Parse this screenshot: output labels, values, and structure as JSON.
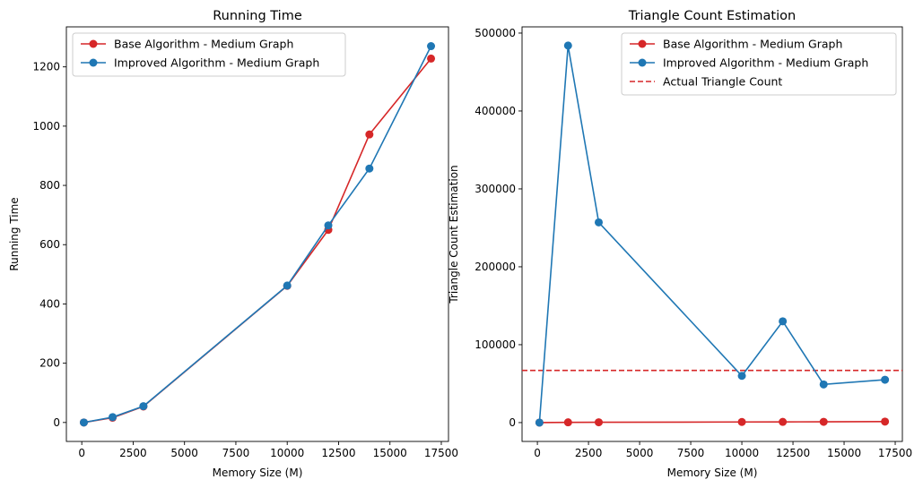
{
  "chart_data": [
    {
      "type": "line",
      "title": "Running Time",
      "xlabel": "Memory Size (M)",
      "ylabel": "Running Time",
      "xlim": [
        -750,
        17850
      ],
      "ylim": [
        -64,
        1335
      ],
      "xticks": [
        0,
        2500,
        5000,
        7500,
        10000,
        12500,
        15000,
        17500
      ],
      "yticks": [
        0,
        200,
        400,
        600,
        800,
        1000,
        1200
      ],
      "grid": false,
      "legend_position": "upper-left",
      "x": [
        100,
        1500,
        3000,
        10000,
        12000,
        14000,
        17000
      ],
      "series": [
        {
          "name": "Base Algorithm - Medium Graph",
          "color": "#d62728",
          "style": "solid-marker",
          "values": [
            0,
            16,
            54,
            461,
            650,
            972,
            1228
          ]
        },
        {
          "name": "Improved Algorithm - Medium Graph",
          "color": "#1f77b4",
          "style": "solid-marker",
          "values": [
            0,
            18,
            55,
            462,
            665,
            857,
            1270
          ]
        }
      ]
    },
    {
      "type": "line",
      "title": "Triangle Count Estimation",
      "xlabel": "Memory Size (M)",
      "ylabel": "Triangle Count Estimation",
      "xlim": [
        -750,
        17850
      ],
      "ylim": [
        -24200,
        508000
      ],
      "xticks": [
        0,
        2500,
        5000,
        7500,
        10000,
        12500,
        15000,
        17500
      ],
      "yticks": [
        0,
        100000,
        200000,
        300000,
        400000,
        500000
      ],
      "grid": false,
      "legend_position": "upper-right",
      "x": [
        100,
        1500,
        3000,
        10000,
        12000,
        14000,
        17000
      ],
      "series": [
        {
          "name": "Base Algorithm - Medium Graph",
          "color": "#d62728",
          "style": "solid-marker",
          "values": [
            0,
            300,
            400,
            800,
            900,
            1000,
            1300
          ]
        },
        {
          "name": "Improved Algorithm - Medium Graph",
          "color": "#1f77b4",
          "style": "solid-marker",
          "values": [
            0,
            484000,
            257000,
            60000,
            130000,
            49000,
            55000
          ]
        }
      ],
      "hlines": [
        {
          "name": "Actual Triangle Count",
          "color": "#d62728",
          "style": "dashed",
          "value": 67000
        }
      ]
    }
  ]
}
